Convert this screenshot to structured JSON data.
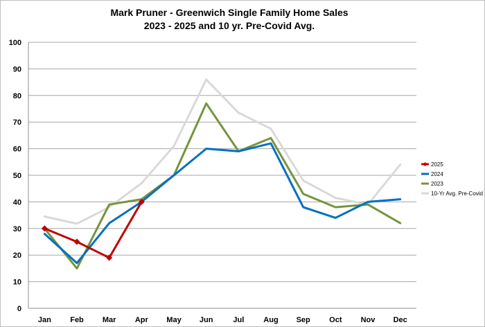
{
  "chart_data": {
    "type": "line",
    "title": "Mark Pruner - Greenwich Single Family Home Sales",
    "subtitle": "2023 - 2025 and 10 yr. Pre-Covid Avg.",
    "xlabel": "",
    "ylabel": "",
    "categories": [
      "Jan",
      "Feb",
      "Mar",
      "Apr",
      "May",
      "Jun",
      "Jul",
      "Aug",
      "Sep",
      "Oct",
      "Nov",
      "Dec"
    ],
    "ylim": [
      0,
      100
    ],
    "yticks": [
      0,
      10,
      20,
      30,
      40,
      50,
      60,
      70,
      80,
      90,
      100
    ],
    "grid": true,
    "legend_position": "right",
    "series": [
      {
        "name": "10-Yr Avg. Pre-Covid",
        "color": "#d9d9d9",
        "marker": "none",
        "values": [
          34.5,
          31.8,
          38.0,
          47.0,
          61.0,
          86.0,
          73.5,
          67.5,
          48.0,
          41.5,
          39.0,
          54.0
        ]
      },
      {
        "name": "2023",
        "color": "#77933c",
        "marker": "none",
        "values": [
          30,
          15,
          39,
          41,
          50,
          77,
          59,
          64,
          43,
          38,
          39,
          32
        ]
      },
      {
        "name": "2024",
        "color": "#0070c0",
        "marker": "none",
        "values": [
          28,
          17,
          32,
          40,
          50,
          60,
          59,
          62,
          38,
          34,
          40,
          41
        ]
      },
      {
        "name": "2025",
        "color": "#c00000",
        "marker": "diamond",
        "values": [
          30,
          25,
          19,
          40,
          null,
          null,
          null,
          null,
          null,
          null,
          null,
          null
        ]
      }
    ],
    "legend_order": [
      "2025",
      "2024",
      "2023",
      "10-Yr Avg. Pre-Covid"
    ]
  }
}
